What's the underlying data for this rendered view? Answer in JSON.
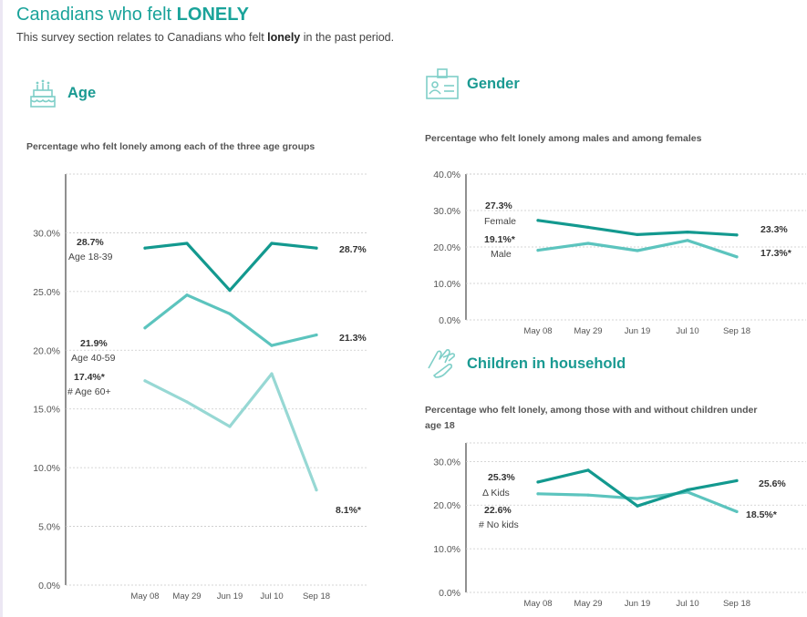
{
  "page": {
    "title_prefix": "Canadians who felt ",
    "title_strong": "LONELY",
    "subtitle_before": "This survey section relates to Canadians who felt ",
    "subtitle_strong": "lonely",
    "subtitle_after": " in the past period."
  },
  "sections": {
    "age": {
      "heading": "Age",
      "icon": "birthday-cake-icon"
    },
    "gender": {
      "heading": "Gender",
      "icon": "id-card-icon"
    },
    "children": {
      "heading": "Children in household",
      "icon": "hands-icon"
    }
  },
  "colors": {
    "teal_dark": "#13998f",
    "teal_mid": "#5cc4be",
    "teal_light": "#97d8d4",
    "grid": "#c9c9c9"
  },
  "chart_data": [
    {
      "id": "age",
      "type": "line",
      "subtitle": "Percentage who felt lonely among each of the three age groups",
      "categories": [
        "May 08",
        "May 29",
        "Jun 19",
        "Jul 10",
        "Sep 18"
      ],
      "ylim": [
        0,
        35
      ],
      "yticks": [
        0,
        5,
        10,
        15,
        20,
        25,
        30
      ],
      "ytick_labels": [
        "0.0%",
        "5.0%",
        "10.0%",
        "15.0%",
        "20.0%",
        "25.0%",
        "30.0%"
      ],
      "grid": true,
      "series": [
        {
          "values": [
            28.7,
            29.1,
            25.1,
            29.1,
            28.7
          ],
          "color": "#13998f",
          "start_value_label": "28.7%",
          "start_name_label": "Age 18-39",
          "end_value_label": "28.7%"
        },
        {
          "values": [
            21.9,
            24.7,
            23.1,
            20.4,
            21.3
          ],
          "color": "#5cc4be",
          "start_value_label": "21.9%",
          "start_name_label": "Age 40-59",
          "end_value_label": "21.3%"
        },
        {
          "values": [
            17.4,
            15.6,
            13.5,
            18.0,
            8.1
          ],
          "color": "#97d8d4",
          "start_value_label": "17.4%*",
          "start_name_label": "# Age 60+",
          "end_value_label": "8.1%*"
        }
      ]
    },
    {
      "id": "gender",
      "type": "line",
      "subtitle": "Percentage who felt lonely among males and among females",
      "categories": [
        "May 08",
        "May 29",
        "Jun 19",
        "Jul 10",
        "Sep 18"
      ],
      "ylim": [
        0,
        40
      ],
      "yticks": [
        0,
        10,
        20,
        30,
        40
      ],
      "ytick_labels": [
        "0.0%",
        "10.0%",
        "20.0%",
        "30.0%",
        "40.0%"
      ],
      "grid": true,
      "series": [
        {
          "values": [
            27.3,
            25.4,
            23.4,
            24.1,
            23.3
          ],
          "color": "#13998f",
          "start_value_label": "27.3%",
          "start_name_label": "Female",
          "end_value_label": "23.3%"
        },
        {
          "values": [
            19.1,
            21.0,
            19.0,
            21.8,
            17.3
          ],
          "color": "#5cc4be",
          "start_value_label": "19.1%*",
          "start_name_label": "Male",
          "end_value_label": "17.3%*"
        }
      ]
    },
    {
      "id": "children",
      "type": "line",
      "subtitle_lines": [
        "Percentage who felt lonely, among those with and without children under",
        "age 18"
      ],
      "categories": [
        "May 08",
        "May 29",
        "Jun 19",
        "Jul 10",
        "Sep 18"
      ],
      "ylim": [
        0,
        33
      ],
      "yticks": [
        0,
        10,
        20,
        30
      ],
      "ytick_labels": [
        "0.0%",
        "10.0%",
        "20.0%",
        "30.0%"
      ],
      "grid": true,
      "series": [
        {
          "values": [
            22.6,
            22.3,
            21.5,
            23.0,
            18.5
          ],
          "color": "#5cc4be",
          "start_value_label": "22.6%",
          "start_name_label": "# No kids",
          "end_value_label": "18.5%*"
        },
        {
          "values": [
            25.3,
            28.0,
            19.8,
            23.5,
            25.6
          ],
          "color": "#13998f",
          "start_value_label": "25.3%",
          "start_name_label": "Δ Kids",
          "end_value_label": "25.6%"
        }
      ]
    }
  ]
}
